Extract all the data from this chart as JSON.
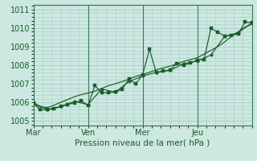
{
  "title": "",
  "xlabel": "Pression niveau de la mer( hPa )",
  "ylabel": "",
  "bg_color": "#cce8e0",
  "grid_color": "#aacccc",
  "line_color": "#1a5c2a",
  "ylim": [
    1004.75,
    1011.25
  ],
  "xlim": [
    0,
    96
  ],
  "yticks": [
    1005,
    1006,
    1007,
    1008,
    1009,
    1010,
    1011
  ],
  "xtick_positions": [
    0,
    24,
    48,
    72,
    96
  ],
  "xtick_labels": [
    "Mar",
    "Ven",
    "Mer",
    "Jeu",
    ""
  ],
  "vline_positions": [
    0,
    24,
    48,
    72
  ],
  "series1_x": [
    0,
    2,
    4,
    6,
    8,
    10,
    12,
    14,
    16,
    18,
    20,
    22,
    24,
    27,
    30,
    33,
    36,
    39,
    42,
    45,
    48,
    51,
    54,
    57,
    60,
    63,
    66,
    69,
    72,
    75,
    78,
    81,
    84,
    87,
    90,
    93,
    96
  ],
  "values1": [
    1006.0,
    1005.85,
    1005.75,
    1005.72,
    1005.8,
    1005.9,
    1006.0,
    1006.1,
    1006.2,
    1006.3,
    1006.38,
    1006.45,
    1006.5,
    1006.6,
    1006.75,
    1006.9,
    1007.0,
    1007.12,
    1007.25,
    1007.4,
    1007.5,
    1007.62,
    1007.75,
    1007.85,
    1007.95,
    1008.07,
    1008.2,
    1008.3,
    1008.4,
    1008.6,
    1008.8,
    1009.0,
    1009.25,
    1009.55,
    1009.8,
    1010.05,
    1010.2
  ],
  "series2_x": [
    0,
    3,
    6,
    9,
    12,
    15,
    18,
    21,
    24,
    27,
    30,
    33,
    36,
    39,
    42,
    45,
    48,
    51,
    54,
    57,
    60,
    63,
    66,
    69,
    72,
    75,
    78,
    81,
    84,
    87,
    90,
    93,
    96
  ],
  "values2": [
    1005.95,
    1005.6,
    1005.6,
    1005.65,
    1005.78,
    1005.88,
    1005.98,
    1006.1,
    1005.82,
    1006.9,
    1006.52,
    1006.52,
    1006.55,
    1006.72,
    1007.25,
    1007.0,
    1007.48,
    1008.85,
    1007.6,
    1007.68,
    1007.75,
    1008.08,
    1008.0,
    1008.12,
    1008.28,
    1008.32,
    1009.98,
    1009.78,
    1009.58,
    1009.62,
    1009.68,
    1010.32,
    1010.28
  ],
  "series3_x": [
    0,
    6,
    12,
    18,
    24,
    30,
    36,
    42,
    48,
    54,
    60,
    66,
    72,
    78,
    84,
    90,
    96
  ],
  "values3": [
    1005.9,
    1005.62,
    1005.78,
    1006.05,
    1005.88,
    1006.72,
    1006.55,
    1007.12,
    1007.42,
    1007.62,
    1007.72,
    1008.08,
    1008.22,
    1008.55,
    1009.55,
    1009.75,
    1010.28
  ]
}
